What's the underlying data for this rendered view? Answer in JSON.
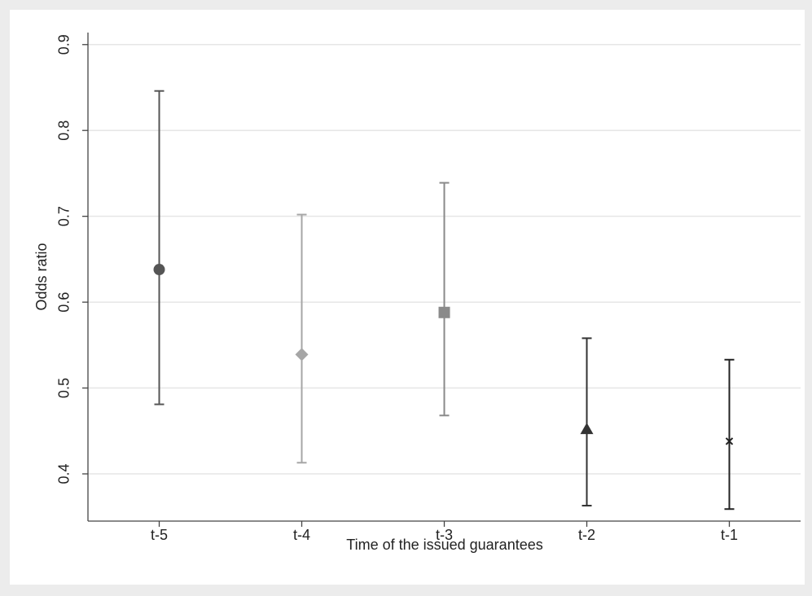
{
  "chart_data": {
    "type": "errorbar",
    "categories": [
      "t-5",
      "t-4",
      "t-3",
      "t-2",
      "t-1"
    ],
    "values": [
      0.638,
      0.539,
      0.588,
      0.452,
      0.438
    ],
    "lower": [
      0.481,
      0.413,
      0.468,
      0.363,
      0.359
    ],
    "upper": [
      0.846,
      0.702,
      0.739,
      0.558,
      0.533
    ],
    "colors": [
      "#555555",
      "#a6a6a6",
      "#8a8a8a",
      "#333333",
      "#222222"
    ],
    "markers": [
      "circle",
      "diamond",
      "square",
      "triangle",
      "x"
    ],
    "x_label": "Time of the issued guarantees",
    "y_label": "Odds ratio",
    "ylim": [
      0.345,
      0.914
    ],
    "yticks": [
      0.4,
      0.5,
      0.6,
      0.7,
      0.8,
      0.9
    ],
    "grid": true
  }
}
